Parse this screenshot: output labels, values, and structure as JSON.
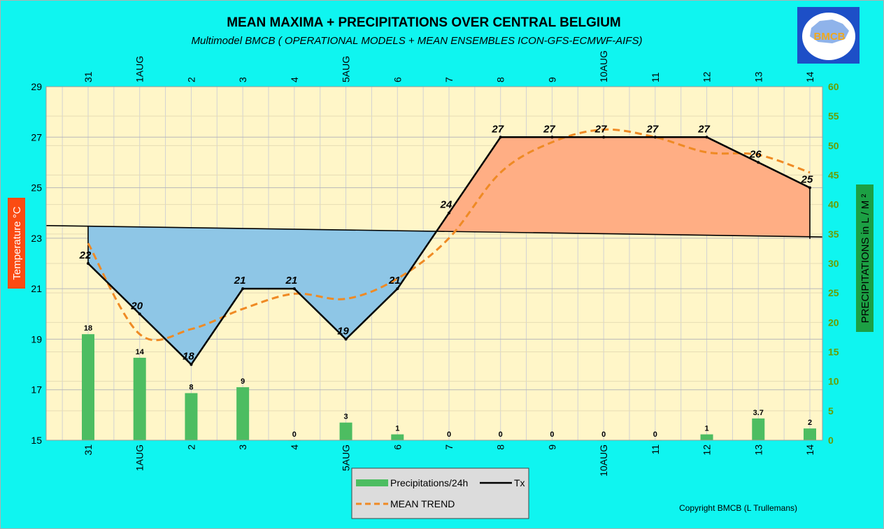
{
  "chart_data": {
    "type": "line",
    "title": "MEAN MAXIMA + PRECIPITATIONS OVER CENTRAL BELGIUM",
    "subtitle": "Multimodel BMCB ( OPERATIONAL MODELS  + MEAN ENSEMBLES ICON-GFS-ECMWF-AIFS)",
    "ylabel_left": "Temperature  °C",
    "ylabel_right": "PRECIPITATIONS in L / M ²",
    "categories": [
      "31",
      "1AUG",
      "2",
      "3",
      "4",
      "5AUG",
      "6",
      "7",
      "8",
      "9",
      "10AUG",
      "11",
      "12",
      "13",
      "14"
    ],
    "ylim_left": [
      15,
      29
    ],
    "yticks_left": [
      15,
      17,
      19,
      21,
      23,
      25,
      27,
      29
    ],
    "ylim_right": [
      0,
      60
    ],
    "yticks_right": [
      0,
      5,
      10,
      15,
      20,
      25,
      30,
      35,
      40,
      45,
      50,
      55,
      60
    ],
    "series": [
      {
        "name": "Tx",
        "values": [
          22,
          20,
          18,
          21,
          21,
          19,
          21,
          24,
          27,
          27,
          27,
          27,
          27,
          26,
          25
        ],
        "labels": [
          "22",
          "20",
          "18",
          "21",
          "21",
          "19",
          "21",
          "24",
          "27",
          "27",
          "27",
          "27",
          "27",
          "26",
          "25"
        ]
      },
      {
        "name": "MEAN TREND",
        "values": [
          22.8,
          19.2,
          19.4,
          20.2,
          20.8,
          20.6,
          21.4,
          23.0,
          25.6,
          26.8,
          27.3,
          27.0,
          26.4,
          26.3,
          25.6
        ]
      },
      {
        "name": "Precipitations/24h",
        "values": [
          18,
          14,
          8,
          9,
          0,
          3,
          1,
          0,
          0,
          0,
          0,
          0,
          1,
          3.7,
          2
        ],
        "labels": [
          "18",
          "14",
          "8",
          "9",
          "0",
          "3",
          "1",
          "0",
          "0",
          "0",
          "0",
          "0",
          "1",
          "3.7",
          "2"
        ]
      }
    ],
    "mean_line": {
      "start": 23.5,
      "end": 23.05
    },
    "colors": {
      "plot_bg": "#fff6c8",
      "outer_bg": "#0ff5f0",
      "bars": "#4dbd61",
      "tx": "#000000",
      "trend": "#ef8a24",
      "below_fill": "#8ec6e6",
      "above_fill": "#ffae84",
      "left_label_bg": "#fb4b12",
      "right_label_bg": "#1ca044",
      "right_axis_text": "#6a9d00"
    },
    "legend": {
      "placement": "bottom-center",
      "bars_label": "Precipitations/24h",
      "tx_label": "Tx",
      "trend_label": "MEAN TREND"
    },
    "grid": true
  },
  "copyright": "Copyright BMCB (L Trullemans)",
  "logo_text": "BMCB"
}
